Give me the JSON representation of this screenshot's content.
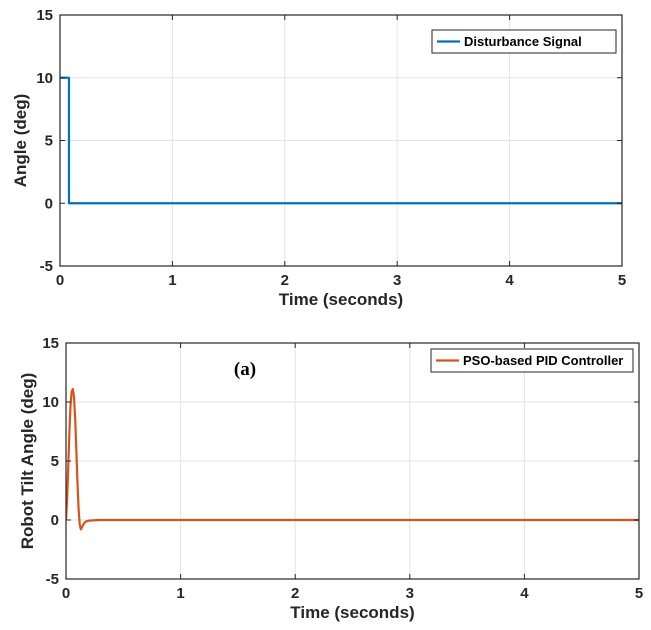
{
  "chart_data": [
    {
      "type": "line",
      "xlabel": "Time (seconds)",
      "ylabel": "Angle (deg)",
      "xlim": [
        0,
        5
      ],
      "ylim": [
        -5,
        15
      ],
      "xticks": [
        "0",
        "1",
        "2",
        "3",
        "4",
        "5"
      ],
      "yticks": [
        "-5",
        "0",
        "5",
        "10",
        "15"
      ],
      "grid": true,
      "legend": "top-right",
      "series": [
        {
          "name": "Disturbance Signal",
          "color": "#0072BD",
          "x": [
            0,
            0.08,
            0.08,
            5
          ],
          "y": [
            10,
            10,
            0,
            0
          ]
        }
      ]
    },
    {
      "type": "line",
      "xlabel": "Time (seconds)",
      "ylabel": "Robot Tilt Angle (deg)",
      "xlim": [
        0,
        5
      ],
      "ylim": [
        -5,
        15
      ],
      "xticks": [
        "0",
        "1",
        "2",
        "3",
        "4",
        "5"
      ],
      "yticks": [
        "-5",
        "0",
        "5",
        "10",
        "15"
      ],
      "grid": true,
      "legend": "top-right",
      "annotation": "(a)",
      "series": [
        {
          "name": "PSO-based PID Controller",
          "color": "#D95319",
          "x": [
            0,
            0.01,
            0.02,
            0.03,
            0.04,
            0.05,
            0.06,
            0.07,
            0.08,
            0.09,
            0.1,
            0.11,
            0.12,
            0.13,
            0.14,
            0.16,
            0.18,
            0.2,
            0.25,
            0.3,
            0.5,
            1,
            5
          ],
          "y": [
            0,
            1.8,
            4.6,
            7.6,
            9.8,
            10.9,
            11.1,
            10.4,
            8.6,
            6.0,
            3.2,
            0.9,
            -0.4,
            -0.8,
            -0.6,
            -0.25,
            -0.1,
            -0.05,
            -0.02,
            0,
            0,
            0,
            0
          ]
        }
      ]
    }
  ]
}
